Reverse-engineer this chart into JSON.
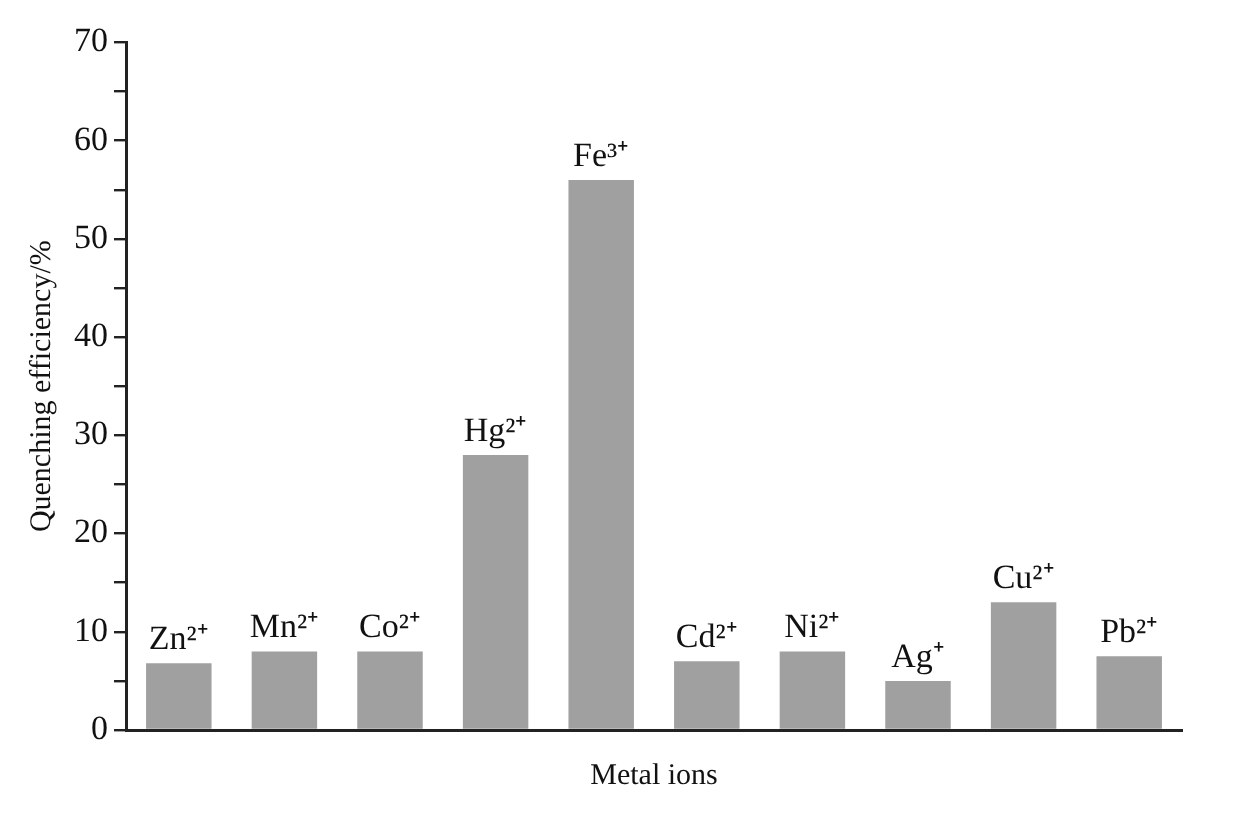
{
  "chart_data": {
    "type": "bar",
    "xlabel": "Metal ions",
    "ylabel": "Quenching efficiency/%",
    "categories": [
      "Zn²⁺",
      "Mn²⁺",
      "Co²⁺",
      "Hg²⁺",
      "Fe³⁺",
      "Cd²⁺",
      "Ni²⁺",
      "Ag⁺",
      "Cu²⁺",
      "Pb²⁺"
    ],
    "values": [
      6.8,
      8,
      8,
      28,
      56,
      7,
      8,
      5,
      13,
      7.5
    ],
    "color": "#a0a0a0",
    "ylim": [
      0,
      70
    ],
    "yticks": [
      0,
      {
        "value": 5,
        "label": null
      },
      10,
      {
        "value": 15,
        "label": null
      },
      20,
      {
        "value": 25,
        "label": null
      },
      30,
      {
        "value": 35,
        "label": null
      },
      40,
      {
        "value": 45,
        "label": null
      },
      50,
      {
        "value": 55,
        "label": null
      },
      60,
      {
        "value": 65,
        "label": null
      },
      70
    ],
    "tick_labels": "y",
    "grid": false,
    "legend": false
  }
}
